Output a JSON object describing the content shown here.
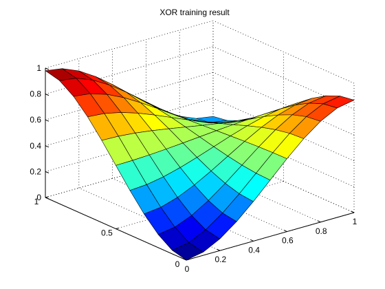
{
  "chart_data": {
    "type": "surface",
    "title": "XOR training result",
    "xlabel": "",
    "ylabel": "",
    "zlabel": "",
    "xlim": [
      0,
      1
    ],
    "ylim": [
      0,
      1
    ],
    "zlim": [
      0,
      1
    ],
    "x_ticks": [
      "0",
      "0.2",
      "0.4",
      "0.6",
      "0.8",
      "1"
    ],
    "y_ticks": [
      "0",
      "0.5",
      "1"
    ],
    "z_ticks": [
      "0",
      "0.2",
      "0.4",
      "0.6",
      "0.8",
      "1"
    ],
    "grid": true,
    "colormap": "jet",
    "grid_resolution": 11,
    "x": [
      0,
      0.1,
      0.2,
      0.3,
      0.4,
      0.5,
      0.6,
      0.7,
      0.8,
      0.9,
      1.0
    ],
    "y": [
      0,
      0.1,
      0.2,
      0.3,
      0.4,
      0.5,
      0.6,
      0.7,
      0.8,
      0.9,
      1.0
    ],
    "z_corners": {
      "x0_y0": 0.0,
      "x1_y0": 0.87,
      "x0_y1": 0.98,
      "x1_y1": 0.26
    },
    "z_profile": "z(x,y) = bilinear blend of z_corners with smoothstep weights s(t) = t*t*(3-2t), s(x) along x and s(y) along y"
  }
}
